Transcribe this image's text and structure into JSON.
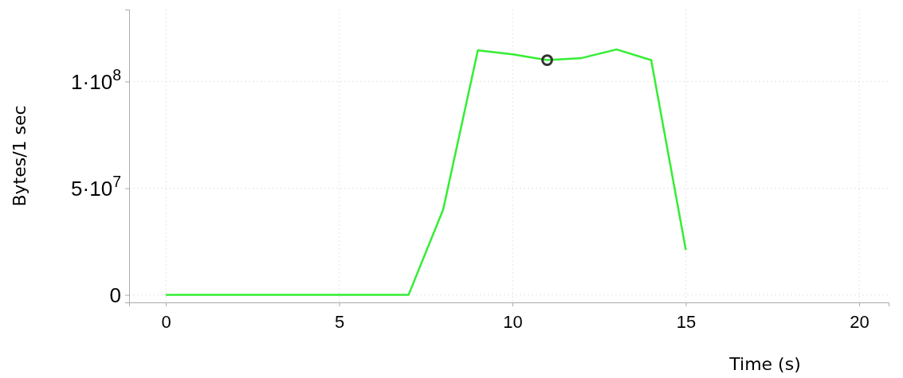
{
  "chart_data": {
    "type": "line",
    "xlabel": "Time (s)",
    "ylabel": "Bytes/1 sec",
    "x": [
      0,
      1,
      2,
      3,
      4,
      5,
      6,
      7,
      8,
      9,
      10,
      11,
      12,
      13,
      14,
      15
    ],
    "series": [
      {
        "color": "#33ee33",
        "values": [
          0,
          0,
          0,
          0,
          0,
          0,
          0,
          0,
          40000000,
          114600000,
          112700000,
          110000000,
          111000000,
          115000000,
          110000000,
          21000000
        ]
      },
      {
        "type": "scatter",
        "color": "#333333",
        "x": [
          11
        ],
        "values": [
          110000000
        ],
        "marker": "circle"
      }
    ],
    "xlim": [
      -1.06,
      20.85
    ],
    "ylim": [
      -3500000,
      133700000
    ],
    "xticks": [
      0,
      5,
      10,
      15,
      20
    ],
    "yticks": [
      0,
      {
        "value": 50000000,
        "label": "5·10$^{7}$"
      },
      {
        "value": 100000000,
        "label": "1·10$^{8}$"
      }
    ],
    "grid": true
  }
}
